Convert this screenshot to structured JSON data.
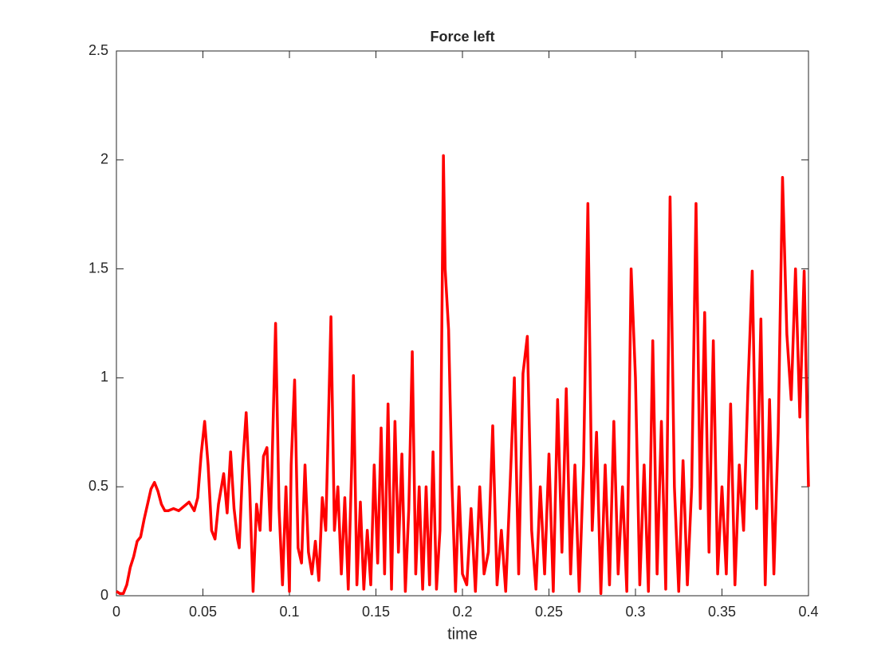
{
  "chart_data": {
    "type": "line",
    "title": "Force left",
    "x_label": "time",
    "color": "#ff0000",
    "line_width": 3.5,
    "xlim": [
      0,
      0.4
    ],
    "ylim": [
      0,
      2.5
    ],
    "xticks": [
      0,
      0.05,
      0.1,
      0.15,
      0.2,
      0.25,
      0.3,
      0.35,
      0.4
    ],
    "yticks": [
      0,
      0.5,
      1,
      1.5,
      2,
      2.5
    ],
    "x": [
      0,
      0.002,
      0.004,
      0.006,
      0.008,
      0.01,
      0.012,
      0.014,
      0.016,
      0.018,
      0.02,
      0.022,
      0.024,
      0.026,
      0.028,
      0.03,
      0.033,
      0.036,
      0.039,
      0.042,
      0.045,
      0.047,
      0.049,
      0.051,
      0.053,
      0.055,
      0.057,
      0.059,
      0.062,
      0.064,
      0.066,
      0.068,
      0.07,
      0.071,
      0.073,
      0.075,
      0.077,
      0.079,
      0.081,
      0.083,
      0.085,
      0.087,
      0.089,
      0.092,
      0.094,
      0.096,
      0.098,
      0.1,
      0.101,
      0.103,
      0.105,
      0.107,
      0.109,
      0.111,
      0.113,
      0.115,
      0.117,
      0.119,
      0.121,
      0.124,
      0.126,
      0.128,
      0.13,
      0.132,
      0.134,
      0.136,
      0.137,
      0.139,
      0.141,
      0.143,
      0.145,
      0.147,
      0.149,
      0.151,
      0.153,
      0.155,
      0.157,
      0.159,
      0.161,
      0.163,
      0.165,
      0.167,
      0.169,
      0.171,
      0.173,
      0.175,
      0.177,
      0.179,
      0.181,
      0.183,
      0.185,
      0.187,
      0.189,
      0.19,
      0.192,
      0.194,
      0.196,
      0.198,
      0.2,
      0.2025,
      0.205,
      0.2075,
      0.21,
      0.2125,
      0.215,
      0.2175,
      0.22,
      0.2225,
      0.225,
      0.2275,
      0.23,
      0.2325,
      0.235,
      0.2375,
      0.24,
      0.2425,
      0.245,
      0.2475,
      0.25,
      0.2525,
      0.255,
      0.2575,
      0.26,
      0.2625,
      0.265,
      0.2675,
      0.27,
      0.2725,
      0.275,
      0.2775,
      0.28,
      0.2825,
      0.285,
      0.2875,
      0.29,
      0.2925,
      0.295,
      0.2975,
      0.3,
      0.3025,
      0.305,
      0.3075,
      0.31,
      0.3125,
      0.315,
      0.3175,
      0.32,
      0.3225,
      0.325,
      0.3275,
      0.33,
      0.3325,
      0.335,
      0.3375,
      0.34,
      0.3425,
      0.345,
      0.3475,
      0.35,
      0.3525,
      0.355,
      0.3575,
      0.36,
      0.3625,
      0.365,
      0.3675,
      0.37,
      0.3725,
      0.375,
      0.3775,
      0.38,
      0.3825,
      0.385,
      0.3875,
      0.39,
      0.3925,
      0.395,
      0.3975,
      0.4
    ],
    "values": [
      0.02,
      0.01,
      0.01,
      0.05,
      0.13,
      0.18,
      0.25,
      0.27,
      0.35,
      0.42,
      0.49,
      0.52,
      0.48,
      0.42,
      0.39,
      0.39,
      0.4,
      0.39,
      0.41,
      0.43,
      0.39,
      0.45,
      0.65,
      0.8,
      0.6,
      0.3,
      0.26,
      0.42,
      0.56,
      0.38,
      0.66,
      0.4,
      0.26,
      0.22,
      0.6,
      0.84,
      0.5,
      0.02,
      0.42,
      0.3,
      0.64,
      0.68,
      0.3,
      1.25,
      0.4,
      0.05,
      0.5,
      0.02,
      0.6,
      0.99,
      0.22,
      0.15,
      0.6,
      0.2,
      0.1,
      0.25,
      0.07,
      0.45,
      0.3,
      1.28,
      0.3,
      0.5,
      0.1,
      0.45,
      0.03,
      0.6,
      1.01,
      0.05,
      0.43,
      0.03,
      0.3,
      0.05,
      0.6,
      0.15,
      0.77,
      0.1,
      0.88,
      0.03,
      0.8,
      0.2,
      0.65,
      0.02,
      0.4,
      1.12,
      0.1,
      0.5,
      0.03,
      0.5,
      0.05,
      0.66,
      0.03,
      0.3,
      2.02,
      1.5,
      1.22,
      0.5,
      0.02,
      0.5,
      0.1,
      0.05,
      0.4,
      0.02,
      0.5,
      0.1,
      0.2,
      0.78,
      0.05,
      0.3,
      0.02,
      0.5,
      1.0,
      0.1,
      1.02,
      1.19,
      0.3,
      0.03,
      0.5,
      0.1,
      0.65,
      0.02,
      0.9,
      0.2,
      0.95,
      0.1,
      0.6,
      0.02,
      0.6,
      1.8,
      0.3,
      0.75,
      0.01,
      0.6,
      0.05,
      0.8,
      0.1,
      0.5,
      0.02,
      1.5,
      1.0,
      0.05,
      0.6,
      0.02,
      1.17,
      0.1,
      0.8,
      0.03,
      1.83,
      0.5,
      0.02,
      0.62,
      0.05,
      0.5,
      1.8,
      0.4,
      1.3,
      0.2,
      1.17,
      0.1,
      0.5,
      0.1,
      0.88,
      0.05,
      0.6,
      0.3,
      0.95,
      1.49,
      0.4,
      1.27,
      0.05,
      0.9,
      0.1,
      0.75,
      1.92,
      1.2,
      0.9,
      1.5,
      0.82,
      1.49,
      0.5
    ]
  }
}
